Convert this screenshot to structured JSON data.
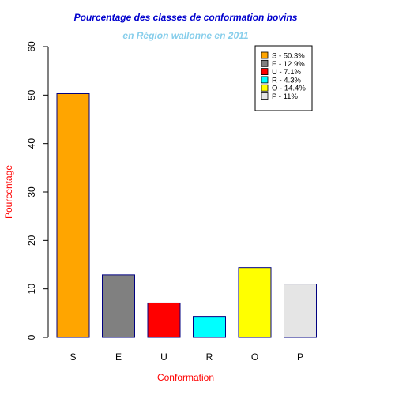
{
  "chart_data": {
    "type": "bar",
    "title": "Pourcentage des classes de conformation bovins",
    "subtitle": "en Région wallonne en 2011",
    "xlabel": "Conformation",
    "ylabel": "Pourcentage",
    "categories": [
      "S",
      "E",
      "U",
      "R",
      "O",
      "P"
    ],
    "values": [
      50.3,
      12.9,
      7.1,
      4.3,
      14.4,
      11
    ],
    "colors": [
      "#FFA500",
      "#808080",
      "#FF0000",
      "#00FFFF",
      "#FFFF00",
      "#E5E5E5"
    ],
    "bar_border_color": "#000080",
    "ylim": [
      0,
      60
    ],
    "yticks": [
      0,
      10,
      20,
      30,
      40,
      50,
      60
    ],
    "grid": false,
    "legend": {
      "position": "top-right",
      "entries": [
        "S - 50.3%",
        "E - 12.9%",
        "U - 7.1%",
        "R - 4.3%",
        "O - 14.4%",
        "P - 11%"
      ]
    },
    "title_color": "#0000CD",
    "subtitle_color": "#87CEEB",
    "axis_label_color": "#FF0000"
  }
}
